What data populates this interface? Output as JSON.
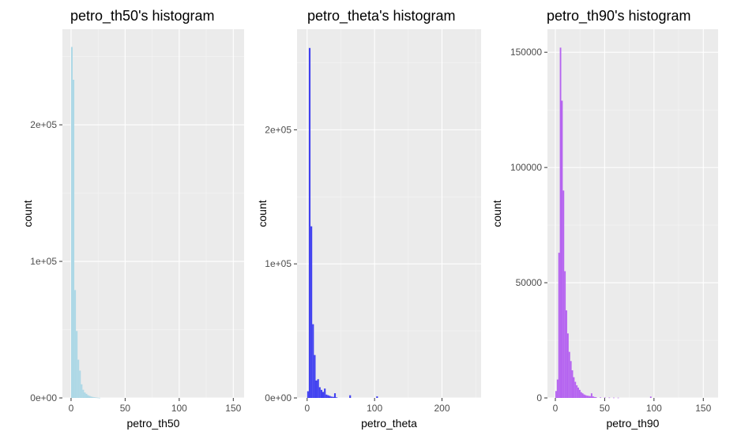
{
  "chart_data": [
    {
      "type": "bar",
      "title": "petro_th50's histogram",
      "xlabel": "petro_th50",
      "ylabel": "count",
      "fill": "#add8e6",
      "xlim": [
        -8,
        160
      ],
      "ylim": [
        0,
        270000
      ],
      "xticks": [
        0,
        50,
        100,
        150
      ],
      "xtick_labels": [
        "0",
        "50",
        "100",
        "150"
      ],
      "yticks": [
        0,
        100000,
        200000
      ],
      "ytick_labels": [
        "0e+00",
        "1e+05",
        "2e+05"
      ],
      "bin_width": 1.5,
      "bins": [
        [
          0.75,
          257000
        ],
        [
          2.25,
          233000
        ],
        [
          3.75,
          79000
        ],
        [
          5.25,
          49000
        ],
        [
          6.75,
          28000
        ],
        [
          8.25,
          20000
        ],
        [
          9.75,
          10000
        ],
        [
          11.25,
          6000
        ],
        [
          12.75,
          4000
        ],
        [
          14.25,
          3000
        ],
        [
          15.75,
          2000
        ],
        [
          17.25,
          1500
        ],
        [
          18.75,
          1000
        ],
        [
          20.25,
          700
        ],
        [
          21.75,
          500
        ],
        [
          23.25,
          300
        ],
        [
          24.75,
          200
        ],
        [
          26.25,
          100
        ]
      ]
    },
    {
      "type": "bar",
      "title": "petro_theta's histogram",
      "xlabel": "petro_theta",
      "ylabel": "count",
      "fill": "#4040f0",
      "xlim": [
        -15,
        258
      ],
      "ylim": [
        0,
        275000
      ],
      "xticks": [
        0,
        100,
        200
      ],
      "xtick_labels": [
        "0",
        "100",
        "200"
      ],
      "yticks": [
        0,
        100000,
        200000
      ],
      "ytick_labels": [
        "0e+00",
        "1e+05",
        "2e+05"
      ],
      "bin_width": 2.5,
      "bins": [
        [
          1.25,
          5000
        ],
        [
          3.75,
          261000
        ],
        [
          6.25,
          128000
        ],
        [
          8.75,
          55000
        ],
        [
          11.25,
          32000
        ],
        [
          13.75,
          13000
        ],
        [
          16.25,
          14000
        ],
        [
          18.75,
          8000
        ],
        [
          21.25,
          6000
        ],
        [
          23.75,
          4500
        ],
        [
          26.25,
          7000
        ],
        [
          28.75,
          2500
        ],
        [
          31.25,
          2000
        ],
        [
          33.75,
          1500
        ],
        [
          36.25,
          1000
        ],
        [
          38.75,
          800
        ],
        [
          41.25,
          3500
        ],
        [
          43.75,
          400
        ],
        [
          63.75,
          2000
        ],
        [
          103.75,
          1200
        ]
      ]
    },
    {
      "type": "bar",
      "title": "petro_th90's histogram",
      "xlabel": "petro_th90",
      "ylabel": "count",
      "fill": "#b563f0",
      "xlim": [
        -8,
        165
      ],
      "ylim": [
        0,
        160000
      ],
      "xticks": [
        0,
        50,
        100,
        150
      ],
      "xtick_labels": [
        "0",
        "50",
        "100",
        "150"
      ],
      "yticks": [
        0,
        50000,
        100000,
        150000
      ],
      "ytick_labels": [
        "0",
        "50000",
        "100000",
        "150000"
      ],
      "bin_width": 1.5,
      "bins": [
        [
          0.75,
          3000
        ],
        [
          2.25,
          8000
        ],
        [
          3.75,
          63000
        ],
        [
          5.25,
          152000
        ],
        [
          6.75,
          129000
        ],
        [
          8.25,
          90000
        ],
        [
          9.75,
          55000
        ],
        [
          11.25,
          38000
        ],
        [
          12.75,
          28000
        ],
        [
          14.25,
          20000
        ],
        [
          15.75,
          16000
        ],
        [
          17.25,
          12000
        ],
        [
          18.75,
          9000
        ],
        [
          20.25,
          7000
        ],
        [
          21.75,
          5500
        ],
        [
          23.25,
          4500
        ],
        [
          24.75,
          3500
        ],
        [
          26.25,
          2500
        ],
        [
          27.75,
          2000
        ],
        [
          29.25,
          1500
        ],
        [
          30.75,
          1200
        ],
        [
          32.25,
          1000
        ],
        [
          33.75,
          900
        ],
        [
          35.25,
          800
        ],
        [
          36.75,
          2000
        ],
        [
          38.25,
          700
        ],
        [
          39.75,
          400
        ],
        [
          41.25,
          300
        ],
        [
          45.75,
          200
        ],
        [
          50.25,
          200
        ],
        [
          54.75,
          150
        ],
        [
          59.25,
          120
        ],
        [
          63.75,
          100
        ],
        [
          96.75,
          600
        ]
      ]
    }
  ]
}
